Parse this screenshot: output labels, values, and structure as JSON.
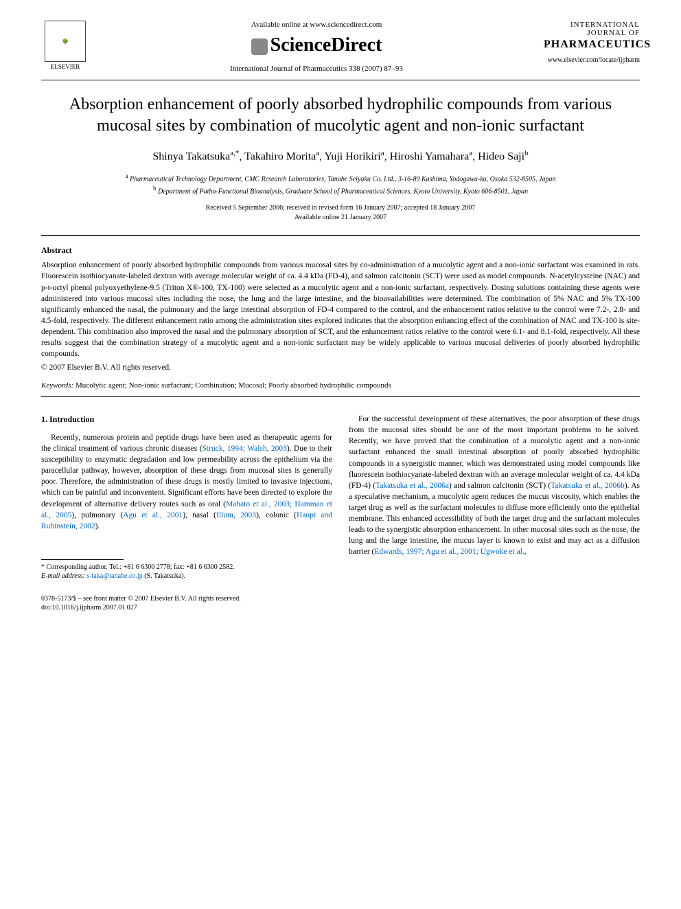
{
  "header": {
    "available_online": "Available online at www.sciencedirect.com",
    "sciencedirect": "ScienceDirect",
    "journal_ref": "International Journal of Pharmaceutics 338 (2007) 87–93",
    "elsevier_label": "ELSEVIER",
    "journal_name_small": "INTERNATIONAL JOURNAL OF",
    "journal_name_big": "PHARMACEUTICS",
    "journal_url": "www.elsevier.com/locate/ijpharm"
  },
  "title": "Absorption enhancement of poorly absorbed hydrophilic compounds from various mucosal sites by combination of mucolytic agent and non-ionic surfactant",
  "authors_html": "Shinya Takatsuka<sup>a,*</sup>, Takahiro Morita<sup>a</sup>, Yuji Horikiri<sup>a</sup>, Hiroshi Yamahara<sup>a</sup>, Hideo Saji<sup>b</sup>",
  "affiliations": [
    "<sup>a</sup> Pharmaceutical Technology Department, CMC Research Laboratories, Tanabe Seiyaku Co. Ltd., 3-16-89 Kashima, Yodogawa-ku, Osaka 532-8505, Japan",
    "<sup>b</sup> Department of Patho-Functional Bioanalysis, Graduate School of Pharmaceutical Sciences, Kyoto University, Kyoto 606-8501, Japan"
  ],
  "dates": {
    "received": "Received 5 September 2006; received in revised form 16 January 2007; accepted 18 January 2007",
    "available": "Available online 21 January 2007"
  },
  "abstract": {
    "heading": "Abstract",
    "body": "Absorption enhancement of poorly absorbed hydrophilic compounds from various mucosal sites by co-administration of a mucolytic agent and a non-ionic surfactant was examined in rats. Fluorescein isothiocyanate-labeled dextran with average molecular weight of ca. 4.4 kDa (FD-4), and salmon calcitonin (SCT) were used as model compounds. N-acetylcysteine (NAC) and p-t-octyl phenol polyoxyethylene-9.5 (Triton X®-100, TX-100) were selected as a mucolytic agent and a non-ionic surfactant, respectively. Dosing solutions containing these agents were administered into various mucosal sites including the nose, the lung and the large intestine, and the bioavailabilities were determined. The combination of 5% NAC and 5% TX-100 significantly enhanced the nasal, the pulmonary and the large intestinal absorption of FD-4 compared to the control, and the enhancement ratios relative to the control were 7.2-, 2.8- and 4.5-fold, respectively. The different enhancement ratio among the administration sites explored indicates that the absorption enhancing effect of the combination of NAC and TX-100 is site-dependent. This combination also improved the nasal and the pulmonary absorption of SCT, and the enhancement ratios relative to the control were 6.1- and 8.1-fold, respectively. All these results suggest that the combination strategy of a mucolytic agent and a non-ionic surfactant may be widely applicable to various mucosal deliveries of poorly absorbed hydrophilic compounds.",
    "copyright": "© 2007 Elsevier B.V. All rights reserved."
  },
  "keywords": {
    "label": "Keywords:",
    "text": " Mucolytic agent; Non-ionic surfactant; Combination; Mucosal; Poorly absorbed hydrophilic compounds"
  },
  "section1": {
    "heading": "1. Introduction",
    "col1_p1_parts": [
      "Recently, numerous protein and peptide drugs have been used as therapeutic agents for the clinical treatment of various chronic diseases (",
      "Struck, 1994; Walsh, 2003",
      "). Due to their susceptibility to enzymatic degradation and low permeability across the epithelium via the paracellular pathway, however, absorption of these drugs from mucosal sites is generally poor. Therefore, the administration of these drugs is mostly limited to invasive injections, which can be painful and inconvenient. Significant efforts have been directed to explore the development of alternative delivery routes such as oral (",
      "Mahato et al., 2003; Hamman et al., 2005",
      "), pulmonary (",
      "Agu et al., 2001",
      "), nasal (",
      "Illum, 2003",
      "), colonic (",
      "Haupt and Rubinstein, 2002",
      ")."
    ],
    "col2_p1_parts": [
      "For the successful development of these alternatives, the poor absorption of these drugs from the mucosal sites should be one of the most important problems to be solved. Recently, we have proved that the combination of a mucolytic agent and a non-ionic surfactant enhanced the small intestinal absorption of poorly absorbed hydrophilic compounds in a synergistic manner, which was demonstrated using model compounds like fluorescein isothiocyanate-labeled dextran with an average molecular weight of ca. 4.4 kDa (FD-4) (",
      "Takatsuka et al., 2006a",
      ") and salmon calcitonin (SCT) (",
      "Takatsuka et al., 2006b",
      "). As a speculative mechanism, a mucolytic agent reduces the mucus viscosity, which enables the target drug as well as the surfactant molecules to diffuse more efficiently onto the epithelial membrane. This enhanced accessibility of both the target drug and the surfactant molecules leads to the synergistic absorption enhancement. In other mucosal sites such as the nose, the lung and the large intestine, the mucus layer is known to exist and may act as a diffusion barrier (",
      "Edwards, 1997; Agu et al., 2001; Ugwoke et al.,"
    ]
  },
  "footnote": {
    "corr": "* Corresponding author. Tel.: +81 6 6300 2778; fax: +81 6 6300 2582.",
    "email_label": "E-mail address:",
    "email": " s-taka@tanabe.co.jp ",
    "email_name": "(S. Takatsuka)."
  },
  "footer": {
    "line1": "0378-5173/$ – see front matter © 2007 Elsevier B.V. All rights reserved.",
    "line2": "doi:10.1016/j.ijpharm.2007.01.027"
  },
  "colors": {
    "link": "#0066cc",
    "text": "#000000",
    "background": "#ffffff"
  },
  "typography": {
    "title_fontsize": 24,
    "authors_fontsize": 16,
    "body_fontsize": 11.5,
    "abstract_fontsize": 11.5,
    "footnote_fontsize": 10,
    "font_family": "serif"
  }
}
